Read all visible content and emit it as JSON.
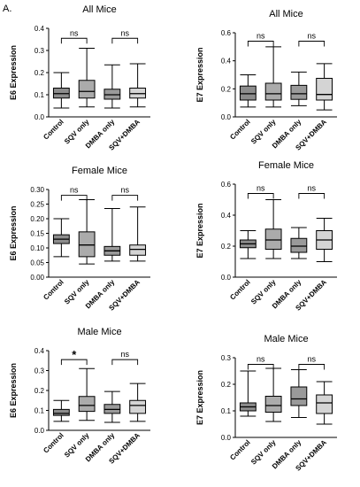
{
  "figure": {
    "panel_label": "A."
  },
  "chart_data": [
    {
      "type": "boxplot",
      "title": "All Mice",
      "ylabel": "E6 Expression",
      "categories": [
        "Control",
        "SQV only",
        "DMBA only",
        "SQV+DMBA"
      ],
      "ylim": [
        0,
        0.4
      ],
      "yticks": [
        "0.0",
        "0.1",
        "0.2",
        "0.3",
        "0.4"
      ],
      "boxes": [
        {
          "min": 0.04,
          "q1": 0.085,
          "median": 0.105,
          "q3": 0.13,
          "max": 0.2,
          "fill": "#8c8c8c"
        },
        {
          "min": 0.045,
          "q1": 0.085,
          "median": 0.115,
          "q3": 0.165,
          "max": 0.31,
          "fill": "#ababab"
        },
        {
          "min": 0.04,
          "q1": 0.08,
          "median": 0.1,
          "q3": 0.125,
          "max": 0.235,
          "fill": "#9a9a9a"
        },
        {
          "min": 0.045,
          "q1": 0.085,
          "median": 0.105,
          "q3": 0.13,
          "max": 0.24,
          "fill": "#d4d4d4"
        }
      ],
      "annotations": [
        {
          "pair": [
            0,
            1
          ],
          "label": "ns",
          "y": 0.355
        },
        {
          "pair": [
            2,
            3
          ],
          "label": "ns",
          "y": 0.355
        }
      ]
    },
    {
      "type": "boxplot",
      "title": "All Mice",
      "ylabel": "E7 Expression",
      "categories": [
        "Control",
        "SQV only",
        "DMBA only",
        "SQV+DMBA"
      ],
      "ylim": [
        0,
        0.6
      ],
      "yticks": [
        "0.0",
        "0.2",
        "0.4",
        "0.6"
      ],
      "boxes": [
        {
          "min": 0.07,
          "q1": 0.12,
          "median": 0.165,
          "q3": 0.22,
          "max": 0.3,
          "fill": "#8c8c8c"
        },
        {
          "min": 0.07,
          "q1": 0.12,
          "median": 0.165,
          "q3": 0.24,
          "max": 0.5,
          "fill": "#ababab"
        },
        {
          "min": 0.08,
          "q1": 0.125,
          "median": 0.165,
          "q3": 0.225,
          "max": 0.32,
          "fill": "#9a9a9a"
        },
        {
          "min": 0.05,
          "q1": 0.12,
          "median": 0.16,
          "q3": 0.275,
          "max": 0.38,
          "fill": "#d4d4d4"
        }
      ],
      "annotations": [
        {
          "pair": [
            0,
            1
          ],
          "label": "ns",
          "y": 0.54
        },
        {
          "pair": [
            2,
            3
          ],
          "label": "ns",
          "y": 0.54
        }
      ]
    },
    {
      "type": "boxplot",
      "title": "Female Mice",
      "ylabel": "E6 Expression",
      "categories": [
        "Control",
        "SQV only",
        "DMBA only",
        "SQV+DMBA"
      ],
      "ylim": [
        0,
        0.3
      ],
      "yticks": [
        "0.00",
        "0.05",
        "0.10",
        "0.15",
        "0.20",
        "0.25",
        "0.30"
      ],
      "boxes": [
        {
          "min": 0.07,
          "q1": 0.115,
          "median": 0.13,
          "q3": 0.145,
          "max": 0.2,
          "fill": "#8c8c8c"
        },
        {
          "min": 0.045,
          "q1": 0.07,
          "median": 0.11,
          "q3": 0.155,
          "max": 0.265,
          "fill": "#ababab"
        },
        {
          "min": 0.055,
          "q1": 0.075,
          "median": 0.09,
          "q3": 0.105,
          "max": 0.235,
          "fill": "#9a9a9a"
        },
        {
          "min": 0.055,
          "q1": 0.075,
          "median": 0.095,
          "q3": 0.11,
          "max": 0.24,
          "fill": "#d4d4d4"
        }
      ],
      "annotations": [
        {
          "pair": [
            0,
            1
          ],
          "label": "ns",
          "y": 0.28
        },
        {
          "pair": [
            2,
            3
          ],
          "label": "ns",
          "y": 0.28
        }
      ]
    },
    {
      "type": "boxplot",
      "title": "Female Mice",
      "ylabel": "E7 Expression",
      "categories": [
        "Control",
        "SQV only",
        "DMBA only",
        "SQV+DMBA"
      ],
      "ylim": [
        0,
        0.6
      ],
      "yticks": [
        "0.0",
        "0.2",
        "0.4",
        "0.6"
      ],
      "boxes": [
        {
          "min": 0.12,
          "q1": 0.19,
          "median": 0.215,
          "q3": 0.24,
          "max": 0.3,
          "fill": "#8c8c8c"
        },
        {
          "min": 0.12,
          "q1": 0.18,
          "median": 0.24,
          "q3": 0.31,
          "max": 0.5,
          "fill": "#ababab"
        },
        {
          "min": 0.12,
          "q1": 0.16,
          "median": 0.2,
          "q3": 0.25,
          "max": 0.32,
          "fill": "#9a9a9a"
        },
        {
          "min": 0.1,
          "q1": 0.18,
          "median": 0.24,
          "q3": 0.3,
          "max": 0.38,
          "fill": "#d4d4d4"
        }
      ],
      "annotations": [
        {
          "pair": [
            0,
            1
          ],
          "label": "ns",
          "y": 0.54
        },
        {
          "pair": [
            2,
            3
          ],
          "label": "ns",
          "y": 0.54
        }
      ]
    },
    {
      "type": "boxplot",
      "title": "Male Mice",
      "ylabel": "E6 Expression",
      "categories": [
        "Control",
        "SQV only",
        "DMBA only",
        "SQV+DMBA"
      ],
      "ylim": [
        0,
        0.4
      ],
      "yticks": [
        "0.0",
        "0.1",
        "0.2",
        "0.3",
        "0.4"
      ],
      "boxes": [
        {
          "min": 0.045,
          "q1": 0.075,
          "median": 0.085,
          "q3": 0.105,
          "max": 0.15,
          "fill": "#8c8c8c"
        },
        {
          "min": 0.05,
          "q1": 0.095,
          "median": 0.125,
          "q3": 0.17,
          "max": 0.31,
          "fill": "#ababab"
        },
        {
          "min": 0.04,
          "q1": 0.085,
          "median": 0.105,
          "q3": 0.13,
          "max": 0.195,
          "fill": "#9a9a9a"
        },
        {
          "min": 0.045,
          "q1": 0.085,
          "median": 0.125,
          "q3": 0.15,
          "max": 0.235,
          "fill": "#d4d4d4"
        }
      ],
      "annotations": [
        {
          "pair": [
            0,
            1
          ],
          "label": "*",
          "y": 0.355
        },
        {
          "pair": [
            2,
            3
          ],
          "label": "ns",
          "y": 0.355
        }
      ]
    },
    {
      "type": "boxplot",
      "title": "Male Mice",
      "ylabel": "E7 Expression",
      "categories": [
        "Control",
        "SQV only",
        "DMBA only",
        "SQV+DMBA"
      ],
      "ylim": [
        0,
        0.3
      ],
      "yticks": [
        "0.0",
        "0.1",
        "0.2",
        "0.3"
      ],
      "boxes": [
        {
          "min": 0.08,
          "q1": 0.1,
          "median": 0.115,
          "q3": 0.13,
          "max": 0.25,
          "fill": "#8c8c8c"
        },
        {
          "min": 0.06,
          "q1": 0.095,
          "median": 0.12,
          "q3": 0.155,
          "max": 0.26,
          "fill": "#ababab"
        },
        {
          "min": 0.075,
          "q1": 0.12,
          "median": 0.145,
          "q3": 0.19,
          "max": 0.255,
          "fill": "#9a9a9a"
        },
        {
          "min": 0.05,
          "q1": 0.09,
          "median": 0.13,
          "q3": 0.16,
          "max": 0.21,
          "fill": "#d4d4d4"
        }
      ],
      "annotations": [
        {
          "pair": [
            0,
            1
          ],
          "label": "ns",
          "y": 0.275
        },
        {
          "pair": [
            2,
            3
          ],
          "label": "ns",
          "y": 0.275
        }
      ]
    }
  ]
}
